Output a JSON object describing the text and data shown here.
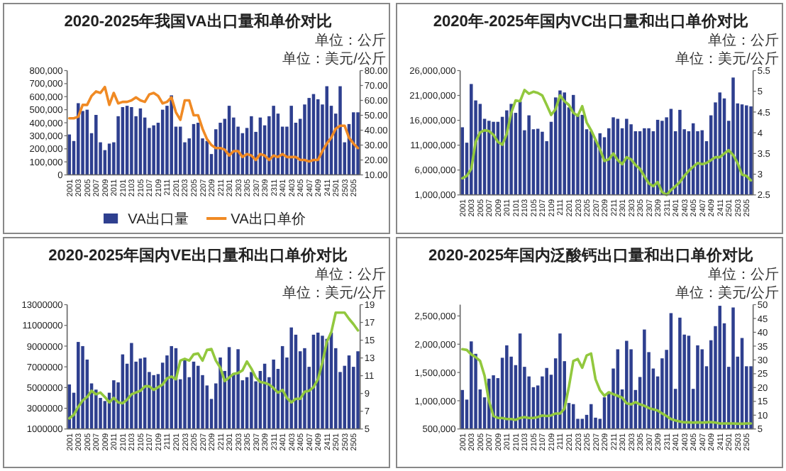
{
  "chart_data": [
    {
      "type": "bar",
      "title": "2020-2025年我国VA出口量和单价对比",
      "annotations": [
        "单位：公斤",
        "单位：美元/公斤"
      ],
      "legend": "bottom",
      "categories": [
        "2001",
        null,
        "2003",
        null,
        "2005",
        null,
        "2007",
        null,
        "2009",
        null,
        "2011",
        null,
        "2101",
        null,
        "2103",
        null,
        "2105",
        null,
        "2107",
        null,
        "2109",
        null,
        "2111",
        null,
        "2201",
        null,
        "2203",
        null,
        "2205",
        null,
        "2207",
        null,
        "2209",
        null,
        "2211",
        null,
        "2301",
        null,
        "2303",
        null,
        "2305",
        null,
        "2307",
        null,
        "2309",
        null,
        "2311",
        null,
        "2401",
        null,
        "2403",
        null,
        "2405",
        null,
        "2407",
        null,
        "2409",
        null,
        "2411",
        null,
        "2501",
        null,
        "2503",
        null,
        "2505",
        null
      ],
      "series": [
        {
          "name": "VA出口量",
          "color": "#2e3f8f",
          "values": [
            310000,
            260000,
            550000,
            490000,
            500000,
            320000,
            460000,
            250000,
            190000,
            240000,
            250000,
            450000,
            520000,
            530000,
            520000,
            450000,
            510000,
            440000,
            360000,
            380000,
            400000,
            500000,
            530000,
            610000,
            370000,
            370000,
            250000,
            280000,
            390000,
            400000,
            280000,
            260000,
            160000,
            350000,
            400000,
            430000,
            530000,
            440000,
            370000,
            320000,
            360000,
            450000,
            330000,
            440000,
            380000,
            450000,
            530000,
            470000,
            370000,
            370000,
            530000,
            400000,
            430000,
            540000,
            590000,
            620000,
            580000,
            540000,
            680000,
            530000,
            470000,
            680000,
            250000,
            390000,
            480000,
            480000
          ]
        },
        {
          "name": "VA出口单价",
          "type": "line",
          "axis": "y2",
          "color": "#f08a24",
          "values": [
            48,
            48,
            49,
            57,
            57,
            63,
            66,
            65,
            69,
            57,
            65,
            58,
            59,
            59,
            60,
            62,
            60,
            59,
            64,
            65,
            63,
            58,
            59,
            62,
            52,
            47,
            60,
            60,
            50,
            50,
            41,
            34,
            30,
            28,
            28,
            27,
            23,
            26,
            26,
            22,
            24,
            23,
            20,
            24,
            23,
            20,
            23,
            22,
            24,
            22,
            22,
            22,
            20,
            20,
            19,
            20,
            20,
            26,
            31,
            35,
            41,
            43,
            43,
            35,
            31,
            28
          ]
        }
      ],
      "ylim": [
        0,
        800000
      ],
      "yticks": [
        0,
        {
          "value": 100000,
          "label": "100,000"
        },
        {
          "value": 200000,
          "label": "200,000"
        },
        {
          "value": 300000,
          "label": "300,000"
        },
        {
          "value": 400000,
          "label": "400,000"
        },
        {
          "value": 500000,
          "label": "500,000"
        },
        {
          "value": 600000,
          "label": "600,000"
        },
        {
          "value": 700000,
          "label": "700,000"
        },
        {
          "value": 800000,
          "label": "800,000"
        }
      ],
      "y2lim": [
        10,
        80
      ],
      "y2ticks": [
        {
          "value": 10,
          "label": "10.00"
        },
        {
          "value": 20,
          "label": "20.00"
        },
        {
          "value": 30,
          "label": "30.00"
        },
        {
          "value": 40,
          "label": "40.00"
        },
        {
          "value": 50,
          "label": "50.00"
        },
        {
          "value": 60,
          "label": "60.00"
        },
        {
          "value": 70,
          "label": "70.00"
        },
        {
          "value": 80,
          "label": "80.00"
        }
      ]
    },
    {
      "type": "bar",
      "title": "2020年-2025年国内VC出口量和出口单价对比",
      "annotations": [
        "单位：公斤",
        "单位：美元/公斤"
      ],
      "categories": [
        "2001",
        null,
        "2003",
        null,
        "2005",
        null,
        "2007",
        null,
        "2009",
        null,
        "2011",
        null,
        "2101",
        null,
        "2103",
        null,
        "2105",
        null,
        "2107",
        null,
        "2109",
        null,
        "2111",
        null,
        "2201",
        null,
        "2203",
        null,
        "2205",
        null,
        "2207",
        null,
        "2209",
        null,
        "2211",
        null,
        "2301",
        null,
        "2303",
        null,
        "2305",
        null,
        "2307",
        null,
        "2309",
        null,
        "2311",
        null,
        "2401",
        null,
        "2403",
        null,
        "2405",
        null,
        "2407",
        null,
        "2409",
        null,
        "2411",
        null,
        "2501",
        null,
        "2503",
        null,
        "2505",
        null
      ],
      "series": [
        {
          "color": "#2e3f8f",
          "values": [
            14600000,
            11500000,
            23300000,
            20000000,
            19300000,
            16300000,
            15900000,
            15700000,
            15700000,
            16700000,
            18000000,
            19300000,
            17500000,
            19800000,
            14000000,
            17000000,
            14200000,
            14300000,
            13700000,
            11800000,
            15700000,
            20600000,
            22000000,
            21600000,
            18600000,
            21100000,
            17100000,
            17100000,
            14200000,
            13800000,
            12100000,
            13400000,
            12600000,
            14400000,
            16600000,
            16300000,
            14400000,
            16300000,
            15200000,
            13800000,
            13800000,
            14400000,
            14400000,
            13800000,
            16100000,
            15900000,
            16600000,
            18300000,
            13800000,
            18100000,
            14200000,
            13800000,
            15400000,
            13800000,
            14000000,
            11800000,
            17000000,
            19600000,
            21600000,
            20400000,
            15900000,
            24600000,
            19400000,
            19200000,
            19000000,
            18800000
          ]
        },
        {
          "type": "line",
          "axis": "y2",
          "color": "#92c83e",
          "values": [
            2.9,
            2.96,
            3.13,
            3.78,
            4.01,
            4.06,
            4.04,
            3.95,
            3.78,
            3.71,
            3.97,
            4.48,
            4.78,
            4.76,
            5.03,
            4.94,
            4.99,
            4.96,
            4.9,
            4.67,
            4.43,
            4.57,
            4.9,
            4.76,
            4.67,
            4.48,
            4.41,
            4.64,
            4.25,
            4.06,
            3.83,
            3.6,
            3.32,
            3.36,
            3.5,
            3.34,
            3.24,
            3.41,
            3.36,
            3.22,
            3.13,
            2.95,
            2.78,
            2.71,
            2.81,
            2.57,
            2.5,
            2.62,
            2.71,
            2.81,
            2.96,
            3.08,
            3.18,
            3.27,
            3.24,
            3.27,
            3.34,
            3.41,
            3.41,
            3.5,
            3.58,
            3.46,
            3.27,
            2.99,
            2.96,
            2.85
          ]
        }
      ],
      "ylim": [
        1000000,
        26000000
      ],
      "yticks": [
        {
          "value": 1000000,
          "label": "1,000,000"
        },
        {
          "value": 6000000,
          "label": "6,000,000"
        },
        {
          "value": 11000000,
          "label": "11,000,000"
        },
        {
          "value": 16000000,
          "label": "16,000,000"
        },
        {
          "value": 21000000,
          "label": "21,000,000"
        },
        {
          "value": 26000000,
          "label": "26,000,000"
        }
      ],
      "y2lim": [
        2.5,
        5.5
      ],
      "y2ticks": [
        2.5,
        3,
        3.5,
        4,
        4.5,
        5,
        5.5
      ]
    },
    {
      "type": "bar",
      "title": "2020-2025年国内VE出口量和出口单价对比",
      "annotations": [
        "单位：公斤",
        "单位：美元/公斤"
      ],
      "categories": [
        "2001",
        null,
        "2003",
        null,
        "2005",
        null,
        "2007",
        null,
        "2009",
        null,
        "2011",
        null,
        "2101",
        null,
        "2103",
        null,
        "2105",
        null,
        "2107",
        null,
        "2109",
        null,
        "2111",
        null,
        "2201",
        null,
        "2203",
        null,
        "2205",
        null,
        "2207",
        null,
        "2209",
        null,
        "2211",
        null,
        "2301",
        null,
        "2303",
        null,
        "2305",
        null,
        "2307",
        null,
        "2309",
        null,
        "2311",
        null,
        "2401",
        null,
        "2403",
        null,
        "2405",
        null,
        "2407",
        null,
        "2409",
        null,
        "2411",
        null,
        "2501",
        null,
        "2503",
        null,
        "2505",
        null
      ],
      "series": [
        {
          "color": "#2e3f8f",
          "values": [
            5300000,
            4500000,
            9400000,
            9000000,
            7700000,
            5400000,
            4800000,
            4000000,
            3700000,
            4500000,
            5700000,
            5500000,
            8200000,
            7300000,
            9300000,
            7500000,
            7800000,
            7900000,
            6500000,
            6200000,
            6300000,
            7400000,
            8100000,
            9000000,
            8800000,
            5800000,
            7800000,
            6000000,
            7500000,
            7100000,
            6200000,
            5200000,
            3900000,
            5400000,
            7900000,
            6600000,
            8900000,
            6400000,
            8700000,
            5700000,
            6000000,
            6500000,
            5600000,
            6600000,
            7300000,
            6000000,
            7700000,
            6800000,
            9000000,
            7900000,
            10800000,
            10100000,
            8500000,
            8800000,
            7000000,
            10100000,
            10300000,
            10000000,
            9700000,
            10300000,
            8800000,
            6500000,
            7100000,
            8100000,
            7000000,
            8500000
          ]
        },
        {
          "type": "line",
          "axis": "y2",
          "color": "#92c83e",
          "values": [
            6.2,
            6.6,
            7.5,
            8.2,
            8.6,
            9.3,
            8.9,
            9.1,
            8.6,
            8.0,
            8.5,
            8.0,
            7.9,
            8.3,
            8.9,
            9.1,
            9.3,
            9.8,
            9.8,
            9.4,
            9.7,
            10.0,
            10.7,
            10.9,
            10.6,
            12.7,
            12.9,
            12.7,
            13.4,
            13.5,
            12.7,
            13.9,
            14.0,
            12.7,
            11.9,
            10.4,
            10.8,
            11.2,
            11.3,
            11.6,
            12.6,
            11.8,
            10.8,
            10.3,
            10.2,
            10.0,
            9.6,
            9.1,
            9.4,
            8.5,
            8.0,
            8.4,
            8.4,
            9.2,
            9.3,
            9.7,
            10.6,
            12.5,
            14.8,
            15.9,
            18.1,
            18.1,
            18.1,
            17.4,
            16.8,
            16.1
          ]
        }
      ],
      "ylim": [
        1000000,
        13000000
      ],
      "yticks": [
        1000000,
        3000000,
        5000000,
        7000000,
        9000000,
        11000000,
        13000000
      ],
      "y2lim": [
        5,
        19
      ],
      "y2ticks": [
        5,
        7,
        9,
        11,
        13,
        15,
        17,
        19
      ]
    },
    {
      "type": "bar",
      "title": "2020-2025年国内泛酸钙出口量和出口单价对比",
      "annotations": [
        "单位：公斤",
        "单位：美元/公斤"
      ],
      "categories": [
        "2001",
        null,
        "2003",
        null,
        "2005",
        null,
        "2007",
        null,
        "2009",
        null,
        "2011",
        null,
        "2101",
        null,
        "2103",
        null,
        "2105",
        null,
        "2107",
        null,
        "2109",
        null,
        "2111",
        null,
        "2201",
        null,
        "2203",
        null,
        "2205",
        null,
        "2207",
        null,
        "2209",
        null,
        "2211",
        null,
        "2301",
        null,
        "2303",
        null,
        "2305",
        null,
        "2307",
        null,
        "2309",
        null,
        "2311",
        null,
        "2401",
        null,
        "2403",
        null,
        "2405",
        null,
        "2407",
        null,
        "2409",
        null,
        "2411",
        null,
        "2501",
        null,
        "2503",
        null,
        "2505",
        null
      ],
      "series": [
        {
          "color": "#2e3f8f",
          "values": [
            1190000,
            1020000,
            2050000,
            1830000,
            1200000,
            1060000,
            1390000,
            1450000,
            1400000,
            1760000,
            1980000,
            1780000,
            1630000,
            2190000,
            1600000,
            1430000,
            1240000,
            1270000,
            1430000,
            1580000,
            1460000,
            1750000,
            2190000,
            1700000,
            960000,
            940000,
            680000,
            680000,
            750000,
            940000,
            700000,
            680000,
            1060000,
            1160000,
            1570000,
            1910000,
            1200000,
            2060000,
            1910000,
            1190000,
            1420000,
            2260000,
            1860000,
            1570000,
            1430000,
            1750000,
            1900000,
            2550000,
            1210000,
            2470000,
            2170000,
            2150000,
            1210000,
            1980000,
            1910000,
            1610000,
            2070000,
            2320000,
            2680000,
            2370000,
            1600000,
            2650000,
            1780000,
            2110000,
            1610000,
            1610000
          ]
        },
        {
          "type": "line",
          "axis": "y2",
          "color": "#92c83e",
          "values": [
            33.9,
            33.6,
            32.0,
            31.0,
            29.6,
            24.3,
            15.0,
            9.7,
            9.0,
            9.0,
            8.6,
            8.6,
            8.3,
            9.0,
            9.3,
            9.0,
            9.0,
            9.3,
            9.9,
            9.7,
            9.9,
            10.6,
            10.6,
            12.3,
            20.3,
            29.6,
            30.3,
            27.2,
            31.6,
            32.3,
            23.0,
            19.0,
            17.0,
            18.3,
            17.6,
            17.0,
            16.3,
            14.3,
            13.9,
            14.7,
            13.9,
            13.4,
            12.6,
            12.1,
            11.7,
            10.6,
            9.7,
            8.6,
            8.1,
            7.7,
            7.4,
            7.4,
            7.3,
            7.4,
            7.3,
            7.4,
            7.5,
            7.3,
            7.0,
            7.0,
            7.0,
            7.0,
            6.9,
            6.9,
            7.0,
            7.0
          ]
        }
      ],
      "ylim": [
        500000,
        2700000
      ],
      "yticks": [
        {
          "value": 500000,
          "label": "500,000"
        },
        {
          "value": 1000000,
          "label": "1,000,000"
        },
        {
          "value": 1500000,
          "label": "1,500,000"
        },
        {
          "value": 2000000,
          "label": "2,000,000"
        },
        {
          "value": 2500000,
          "label": "2,500,000"
        }
      ],
      "y2lim": [
        5,
        50
      ],
      "y2ticks": [
        5,
        10,
        15,
        20,
        25,
        30,
        35,
        40,
        45,
        50
      ]
    }
  ]
}
